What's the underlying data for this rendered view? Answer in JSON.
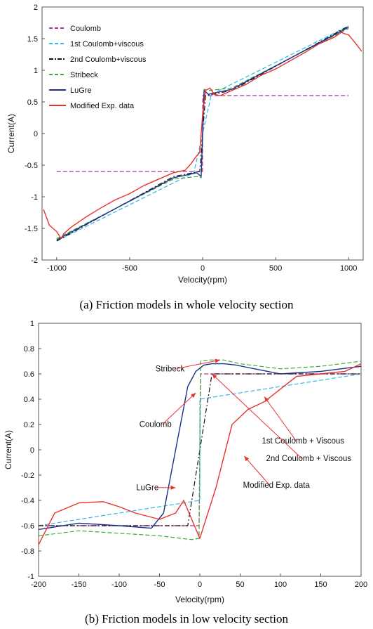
{
  "chart_data": [
    {
      "type": "line",
      "title": "",
      "caption": "(a) Friction models in whole velocity section",
      "xlabel": "Velocity(rpm)",
      "ylabel": "Current(A)",
      "xlim": [
        -1100,
        1100
      ],
      "ylim": [
        -2,
        2
      ],
      "xticks": [
        -1000,
        -500,
        0,
        500,
        1000
      ],
      "yticks": [
        -2,
        -1.5,
        -1,
        -0.5,
        0,
        0.5,
        1,
        1.5,
        2
      ],
      "legend_position": "top-left",
      "grid": false,
      "series": [
        {
          "name": "Coulomb",
          "color": "#b0309a",
          "dash": "dash",
          "x": [
            -1000,
            -1,
            1,
            1000
          ],
          "y": [
            -0.6,
            -0.6,
            0.6,
            0.6
          ]
        },
        {
          "name": "1st Coulomb+viscous",
          "color": "#38b6e6",
          "dash": "dash",
          "x": [
            -1000,
            -60,
            0,
            60,
            1000
          ],
          "y": [
            -1.7,
            -0.62,
            0,
            0.62,
            1.7
          ]
        },
        {
          "name": "2nd Coulomb+viscous",
          "color": "#111111",
          "dash": "dashdot",
          "x": [
            -1000,
            -200,
            -20,
            0,
            20,
            200,
            1000
          ],
          "y": [
            -1.7,
            -0.68,
            -0.6,
            0,
            0.6,
            0.68,
            1.7
          ]
        },
        {
          "name": "Stribeck",
          "color": "#3aaa35",
          "dash": "dash",
          "x": [
            -1000,
            -200,
            -40,
            -10,
            0,
            10,
            40,
            200,
            1000
          ],
          "y": [
            -1.66,
            -0.72,
            -0.68,
            -0.7,
            0,
            0.7,
            0.68,
            0.72,
            1.66
          ]
        },
        {
          "name": "LuGre",
          "color": "#1a2f8a",
          "dash": "solid",
          "x": [
            -1000,
            -200,
            -40,
            -10,
            0,
            10,
            40,
            200,
            1000
          ],
          "y": [
            -1.68,
            -0.7,
            -0.62,
            -0.68,
            0,
            0.68,
            0.62,
            0.7,
            1.68
          ]
        },
        {
          "name": "Modified Exp. data",
          "color": "#e8322d",
          "dash": "solid",
          "x": [
            -1090,
            -1050,
            -1000,
            -970,
            -950,
            -900,
            -800,
            -700,
            -600,
            -500,
            -400,
            -300,
            -200,
            -120,
            -80,
            -50,
            -20,
            0,
            20,
            50,
            80,
            120,
            200,
            300,
            400,
            500,
            600,
            700,
            800,
            900,
            950,
            970,
            1000,
            1050,
            1090
          ],
          "y": [
            -1.2,
            -1.45,
            -1.55,
            -1.66,
            -1.58,
            -1.48,
            -1.32,
            -1.18,
            -1.05,
            -0.95,
            -0.82,
            -0.72,
            -0.62,
            -0.58,
            -0.48,
            -0.38,
            -0.3,
            0.3,
            0.68,
            0.72,
            0.62,
            0.6,
            0.68,
            0.78,
            0.92,
            1.02,
            1.15,
            1.28,
            1.42,
            1.52,
            1.6,
            1.58,
            1.56,
            1.42,
            1.3
          ]
        }
      ]
    },
    {
      "type": "line",
      "title": "",
      "caption": "(b) Friction models in low velocity section",
      "xlabel": "Velocity(rpm)",
      "ylabel": "Current(A)",
      "xlim": [
        -200,
        200
      ],
      "ylim": [
        -1,
        1
      ],
      "xticks": [
        -200,
        -150,
        -100,
        -50,
        0,
        50,
        100,
        150,
        200
      ],
      "yticks": [
        -1,
        -0.8,
        -0.6,
        -0.4,
        -0.2,
        0,
        0.2,
        0.4,
        0.6,
        0.8,
        1
      ],
      "grid": false,
      "annotations": [
        {
          "text": "Stribeck",
          "x": -37,
          "y": 0.62,
          "arrow_to": [
            25,
            0.71
          ]
        },
        {
          "text": "Coulomb",
          "x": -55,
          "y": 0.18,
          "arrow_to": [
            -5,
            0.45
          ]
        },
        {
          "text": "1st Coulomb + Viscous",
          "x": 128,
          "y": 0.05,
          "arrow_to": [
            80,
            0.42
          ]
        },
        {
          "text": "2nd Coulomb + Viscous",
          "x": 135,
          "y": -0.09,
          "arrow_to": [
            15,
            0.6
          ]
        },
        {
          "text": "LuGre",
          "x": -65,
          "y": -0.32,
          "arrow_to": [
            -30,
            -0.3
          ]
        },
        {
          "text": "Modified Exp. data",
          "x": 95,
          "y": -0.3,
          "arrow_to": [
            55,
            -0.05
          ]
        }
      ],
      "series": [
        {
          "name": "Coulomb",
          "color": "#b0309a",
          "dash": "dash",
          "x": [
            -200,
            -1,
            1,
            200
          ],
          "y": [
            -0.6,
            -0.6,
            0.6,
            0.6
          ]
        },
        {
          "name": "1st Coulomb+viscous",
          "color": "#38b6e6",
          "dash": "dash",
          "x": [
            -200,
            0,
            0,
            200
          ],
          "y": [
            -0.6,
            -0.4,
            0.4,
            0.6
          ]
        },
        {
          "name": "2nd Coulomb+viscous",
          "color": "#111111",
          "dash": "dashdot",
          "x": [
            -200,
            -15,
            15,
            200
          ],
          "y": [
            -0.6,
            -0.6,
            0.6,
            0.6
          ]
        },
        {
          "name": "Stribeck",
          "color": "#3aaa35",
          "dash": "dash",
          "x": [
            -200,
            -150,
            -100,
            -50,
            -10,
            -1,
            1,
            10,
            30,
            50,
            100,
            150,
            200
          ],
          "y": [
            -0.68,
            -0.64,
            -0.66,
            -0.68,
            -0.71,
            -0.7,
            0.7,
            0.71,
            0.71,
            0.68,
            0.64,
            0.66,
            0.7
          ]
        },
        {
          "name": "LuGre",
          "color": "#1a2f8a",
          "dash": "solid",
          "x": [
            -200,
            -150,
            -100,
            -60,
            -45,
            -30,
            -15,
            -5,
            5,
            15,
            30,
            45,
            60,
            100,
            150,
            200
          ],
          "y": [
            -0.63,
            -0.58,
            -0.6,
            -0.62,
            -0.5,
            0.0,
            0.5,
            0.62,
            0.67,
            0.68,
            0.68,
            0.67,
            0.65,
            0.6,
            0.62,
            0.66
          ]
        },
        {
          "name": "Modified Exp. data",
          "color": "#e8322d",
          "dash": "solid",
          "x": [
            -200,
            -180,
            -150,
            -120,
            -100,
            -80,
            -50,
            -30,
            -20,
            0,
            20,
            40,
            60,
            80,
            100,
            120,
            150,
            180,
            200
          ],
          "y": [
            -0.75,
            -0.5,
            -0.42,
            -0.41,
            -0.45,
            -0.5,
            -0.55,
            -0.5,
            -0.4,
            -0.7,
            -0.3,
            0.2,
            0.32,
            0.38,
            0.48,
            0.58,
            0.6,
            0.62,
            0.68
          ]
        }
      ]
    }
  ]
}
